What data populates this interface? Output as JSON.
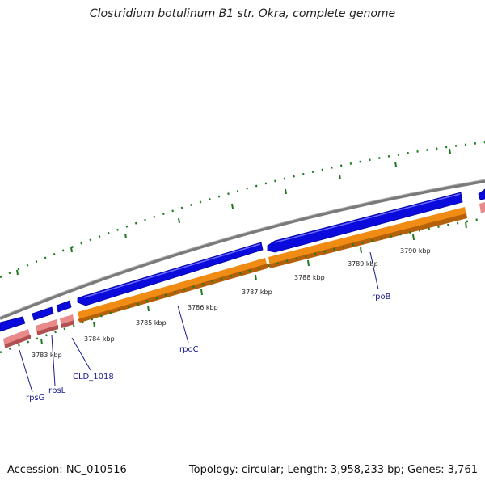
{
  "title": "Clostridium botulinum B1 str. Okra, complete genome",
  "footer": {
    "accession": "Accession: NC_010516",
    "summary": "Topology: circular; Length: 3,958,233 bp; Genes: 3,761"
  },
  "colors": {
    "backbone": "#808080",
    "cds_forward": "#0a0adc",
    "orf_forward": "#f08c14",
    "rna_pink": "#e88a8a",
    "ticks": "#1e7a1e",
    "gene_label": "#1a1a8c"
  },
  "kbp_labels": [
    "3783 kbp",
    "3784 kbp",
    "3785 kbp",
    "3786 kbp",
    "3787 kbp",
    "3788 kbp",
    "3789 kbp",
    "3790 kbp"
  ],
  "gene_labels": [
    "rpsG",
    "rpsL",
    "CLD_1018",
    "rpoC",
    "rpoB"
  ]
}
